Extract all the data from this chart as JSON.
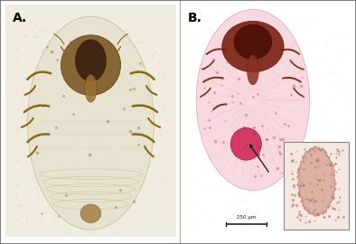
{
  "figure_bg": "#ffffff",
  "outer_border_color": "#666666",
  "divider_color": "#aaaaaa",
  "label_A": "A.",
  "label_B": "B.",
  "label_fontsize": 10,
  "label_fontweight": "bold",
  "label_color": "#000000",
  "scalebar_text": "250 μm",
  "scalebar_color": "#111111",
  "scalebar_fontsize": 4.0,
  "panel_A_bg": "#f0ece0",
  "panel_B_bg": "#ffffff",
  "body_A_color": "#e8dfc8",
  "body_A_edge": "#c8b890",
  "body_B_color": "#f8d8dc",
  "body_B_edge": "#e0b0b8",
  "head_A_color": "#7a5520",
  "head_B_color": "#7a2020",
  "leg_A_color": "#8B6914",
  "leg_B_color": "#7a3018",
  "egg_color": "#cc2050",
  "arrow_color": "#111111",
  "inset_bg": "#f5e8e0",
  "inset_edge": "#888888",
  "inset_tissue_color": "#d4a090"
}
